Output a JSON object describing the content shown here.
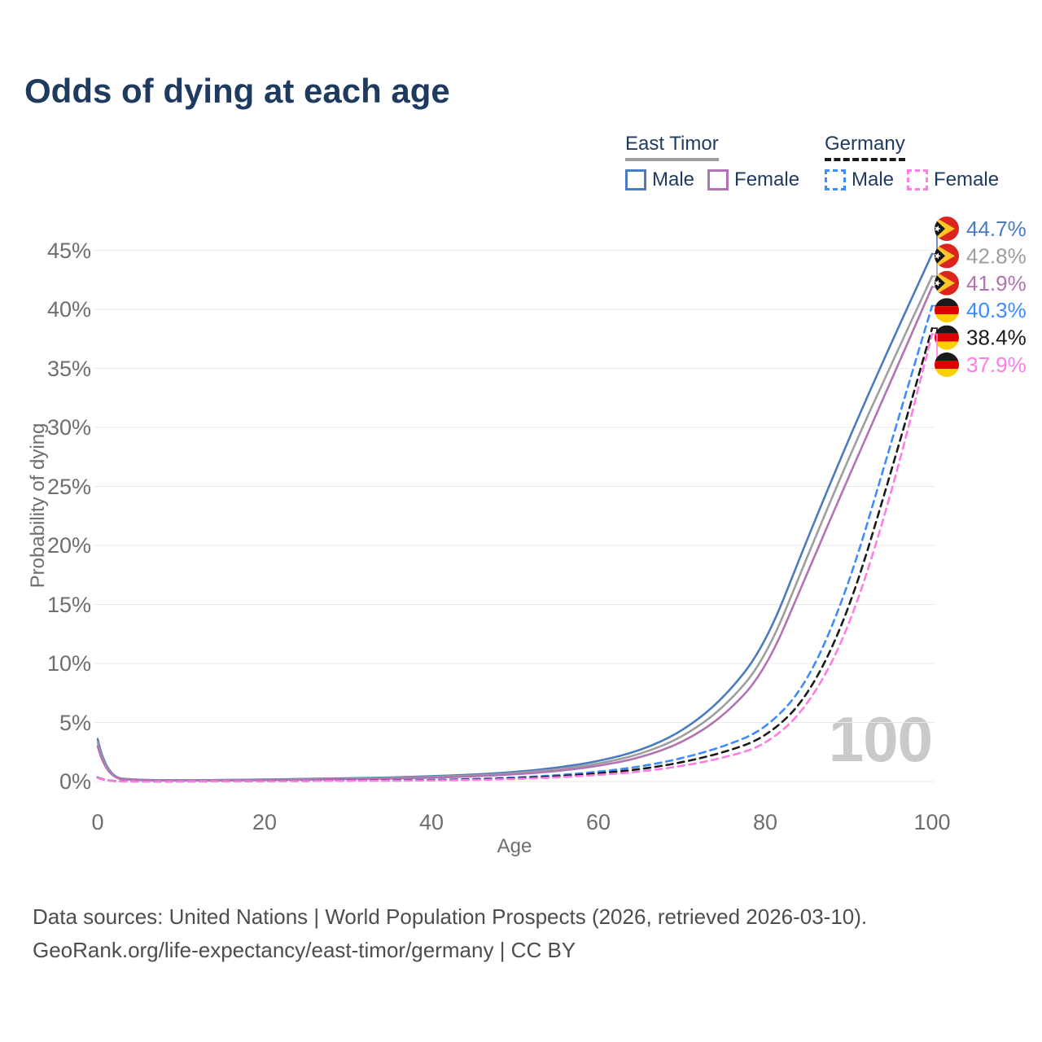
{
  "page": {
    "title": "Odds of dying at each age",
    "footer": {
      "line1": "Data sources: United Nations | World Population Prospects (2026, retrieved 2026-03-10).",
      "line2": "GeoRank.org/life-expectancy/east-timor/germany | CC BY"
    }
  },
  "legend": {
    "groups": [
      {
        "label": "East Timor",
        "line_style": "solid",
        "underline_color": "#9e9e9e",
        "items": [
          {
            "label": "Male",
            "color": "#4a7bbf"
          },
          {
            "label": "Female",
            "color": "#b173b1"
          }
        ]
      },
      {
        "label": "Germany",
        "line_style": "dashed",
        "underline_color": "#1a1a1a",
        "items": [
          {
            "label": "Male",
            "color": "#3e8bfd"
          },
          {
            "label": "Female",
            "color": "#ff7ce4"
          }
        ]
      }
    ]
  },
  "chart_data": {
    "type": "line",
    "title": "Odds of dying at each age",
    "xlabel": "Age",
    "ylabel": "Probability of dying",
    "xlim": [
      0,
      100
    ],
    "ylim_percent": [
      0,
      47
    ],
    "grid": "horizontal-only",
    "watermark": "100",
    "x_ticks": [
      0,
      20,
      40,
      60,
      80,
      100
    ],
    "y_ticks": [
      {
        "value": 0,
        "label": "0%"
      },
      {
        "value": 5,
        "label": "5%"
      },
      {
        "value": 10,
        "label": "10%"
      },
      {
        "value": 15,
        "label": "15%"
      },
      {
        "value": 20,
        "label": "20%"
      },
      {
        "value": 25,
        "label": "25%"
      },
      {
        "value": 30,
        "label": "30%"
      },
      {
        "value": 35,
        "label": "35%"
      },
      {
        "value": 40,
        "label": "40%"
      },
      {
        "value": 45,
        "label": "45%"
      }
    ],
    "x": [
      0,
      1,
      5,
      10,
      15,
      20,
      25,
      30,
      35,
      40,
      45,
      50,
      55,
      60,
      65,
      70,
      75,
      80,
      85,
      90,
      95,
      100
    ],
    "series": [
      {
        "name": "East Timor Male",
        "country": "East Timor",
        "sex": "Male",
        "color": "#4a7bbf",
        "dashed": false,
        "flag": "east-timor",
        "end_label": "44.7%",
        "values": [
          3.6,
          0.35,
          0.12,
          0.1,
          0.13,
          0.17,
          0.22,
          0.27,
          0.34,
          0.44,
          0.58,
          0.8,
          1.15,
          1.7,
          2.6,
          4.2,
          7.0,
          11.5,
          20.5,
          29.0,
          37.0,
          44.7
        ]
      },
      {
        "name": "East Timor Both sexes",
        "country": "East Timor",
        "sex": "Both",
        "color": "#9e9e9e",
        "dashed": false,
        "flag": "east-timor",
        "end_label": "42.8%",
        "values": [
          3.3,
          0.32,
          0.11,
          0.09,
          0.11,
          0.15,
          0.19,
          0.23,
          0.29,
          0.38,
          0.5,
          0.69,
          1.0,
          1.48,
          2.28,
          3.7,
          6.2,
          10.3,
          19.0,
          27.4,
          35.2,
          42.8
        ]
      },
      {
        "name": "East Timor Female",
        "country": "East Timor",
        "sex": "Female",
        "color": "#b173b1",
        "dashed": false,
        "flag": "east-timor",
        "end_label": "41.9%",
        "values": [
          3.0,
          0.29,
          0.1,
          0.08,
          0.1,
          0.12,
          0.16,
          0.2,
          0.25,
          0.32,
          0.43,
          0.6,
          0.87,
          1.3,
          2.0,
          3.25,
          5.5,
          9.3,
          17.6,
          25.8,
          33.8,
          41.9
        ]
      },
      {
        "name": "Germany Male",
        "country": "Germany",
        "sex": "Male",
        "color": "#3e8bfd",
        "dashed": true,
        "flag": "germany",
        "end_label": "40.3%",
        "values": [
          0.35,
          0.03,
          0.01,
          0.01,
          0.03,
          0.05,
          0.06,
          0.08,
          0.1,
          0.14,
          0.21,
          0.33,
          0.52,
          0.82,
          1.25,
          1.95,
          2.95,
          4.4,
          8.2,
          16.5,
          28.5,
          40.3
        ]
      },
      {
        "name": "Germany Both sexes",
        "country": "Germany",
        "sex": "Both",
        "color": "#1a1a1a",
        "dashed": true,
        "flag": "germany",
        "end_label": "38.4%",
        "values": [
          0.32,
          0.03,
          0.01,
          0.01,
          0.02,
          0.04,
          0.05,
          0.06,
          0.08,
          0.11,
          0.17,
          0.27,
          0.43,
          0.68,
          1.03,
          1.6,
          2.45,
          3.7,
          7.0,
          14.3,
          26.0,
          38.4
        ]
      },
      {
        "name": "Germany Female",
        "country": "Germany",
        "sex": "Female",
        "color": "#ff7ce4",
        "dashed": true,
        "flag": "germany",
        "end_label": "37.9%",
        "values": [
          0.3,
          0.02,
          0.01,
          0.01,
          0.02,
          0.03,
          0.04,
          0.05,
          0.06,
          0.09,
          0.13,
          0.21,
          0.34,
          0.55,
          0.83,
          1.3,
          2.0,
          3.05,
          6.2,
          12.8,
          24.0,
          37.9
        ]
      }
    ]
  }
}
